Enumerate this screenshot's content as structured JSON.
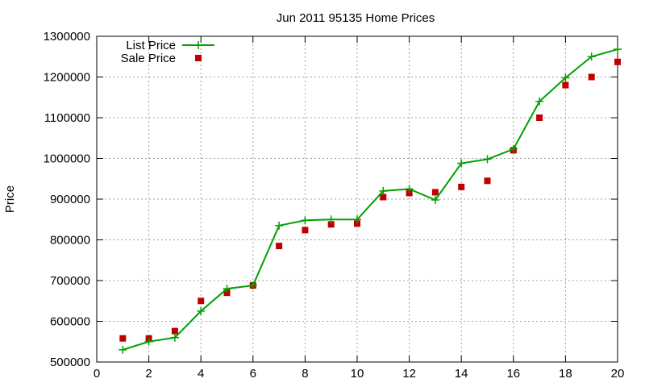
{
  "chart_data": {
    "type": "line",
    "title": "Jun 2011 95135 Home Prices",
    "xlabel": "",
    "ylabel": "Price",
    "xlim": [
      0,
      20
    ],
    "ylim": [
      500000,
      1300000
    ],
    "xticks": [
      0,
      2,
      4,
      6,
      8,
      10,
      12,
      14,
      16,
      18,
      20
    ],
    "yticks": [
      500000,
      600000,
      700000,
      800000,
      900000,
      1000000,
      1100000,
      1200000,
      1300000
    ],
    "grid": true,
    "legend_position": "top-left",
    "series": [
      {
        "name": "List Price",
        "style": "line+cross",
        "color": "#00a000",
        "x": [
          1,
          2,
          3,
          4,
          5,
          6,
          7,
          8,
          9,
          10,
          11,
          12,
          13,
          14,
          15,
          16,
          17,
          18,
          19,
          20
        ],
        "y": [
          530000,
          550000,
          560000,
          625000,
          680000,
          688000,
          835000,
          848000,
          850000,
          850000,
          920000,
          925000,
          898000,
          988000,
          998000,
          1023000,
          1140000,
          1198000,
          1250000,
          1268000
        ]
      },
      {
        "name": "Sale Price",
        "style": "square",
        "color": "#c00000",
        "x": [
          1,
          2,
          3,
          4,
          5,
          6,
          7,
          8,
          9,
          10,
          11,
          12,
          13,
          14,
          15,
          16,
          17,
          18,
          19,
          20
        ],
        "y": [
          558000,
          558000,
          576000,
          650000,
          670000,
          688000,
          785000,
          824000,
          838000,
          840000,
          905000,
          915000,
          917000,
          930000,
          945000,
          1020000,
          1100000,
          1180000,
          1200000,
          1237000
        ]
      }
    ]
  }
}
